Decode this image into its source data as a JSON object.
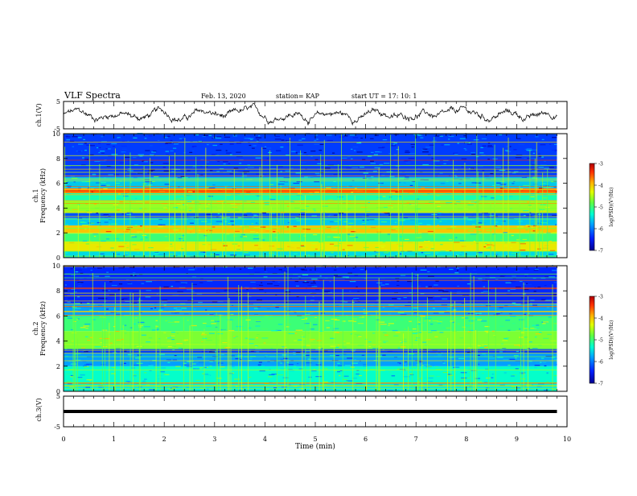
{
  "header": {
    "title": "VLF Spectra",
    "date": "Feb. 13, 2020",
    "station": "station= KAP",
    "start_time": "start  UT =   17: 10: 1"
  },
  "colors": {
    "spectrogram_base": "#1f3fc7",
    "line_trace": "#000000",
    "colorbar": [
      "#0000a0",
      "#0030ff",
      "#00c8ff",
      "#4cff6a",
      "#c8ff00",
      "#ffd000",
      "#ff5000",
      "#d00000"
    ]
  },
  "chart_data": [
    {
      "type": "line",
      "name": "ch1-waveform",
      "ylabel": "ch.1(V)",
      "ylim": [
        -5,
        5
      ],
      "yticks": [
        "5",
        "-5"
      ],
      "xlim": [
        0,
        10
      ],
      "x_end": 9.8,
      "y_description": "noisy trace around 0 V"
    },
    {
      "type": "heatmap",
      "name": "ch1-spectrogram",
      "ylabel": "ch.1\nFrequency (kHz)",
      "ylim": [
        0,
        10
      ],
      "yticks": [
        "0",
        "2",
        "4",
        "6",
        "8",
        "10"
      ],
      "xlim": [
        0,
        10
      ],
      "x_end": 9.8,
      "colorbar": {
        "label": "log(PSD)(V²/Hz)",
        "range": [
          -7,
          -3
        ],
        "ticks": [
          "-3",
          "-4",
          "-5",
          "-6",
          "-7"
        ]
      },
      "bands_khz": [
        {
          "from": 0.0,
          "to": 0.5,
          "level": -5.5
        },
        {
          "from": 0.5,
          "to": 1.3,
          "level": -4.2
        },
        {
          "from": 1.3,
          "to": 2.0,
          "level": -5.0
        },
        {
          "from": 2.0,
          "to": 2.6,
          "level": -4.0
        },
        {
          "from": 2.6,
          "to": 3.2,
          "level": -5.6
        },
        {
          "from": 3.2,
          "to": 3.6,
          "level": -6.2
        },
        {
          "from": 3.6,
          "to": 4.6,
          "level": -4.6
        },
        {
          "from": 4.6,
          "to": 5.2,
          "level": -5.2
        },
        {
          "from": 5.2,
          "to": 5.6,
          "level": -3.6
        },
        {
          "from": 5.6,
          "to": 6.5,
          "level": -5.6
        },
        {
          "from": 6.5,
          "to": 10.0,
          "level": -6.3
        }
      ]
    },
    {
      "type": "heatmap",
      "name": "ch2-spectrogram",
      "ylabel": "ch.2\nFrequency (kHz)",
      "ylim": [
        0,
        10
      ],
      "yticks": [
        "0",
        "2",
        "4",
        "6",
        "8",
        "10"
      ],
      "xlim": [
        0,
        10
      ],
      "x_end": 9.8,
      "colorbar": {
        "label": "log(PSD)(V²/Hz)",
        "range": [
          -7,
          -3
        ],
        "ticks": [
          "-3",
          "-4",
          "-5",
          "-6",
          "-7"
        ]
      },
      "bands_khz": [
        {
          "from": 0.0,
          "to": 0.6,
          "level": -5.4
        },
        {
          "from": 0.6,
          "to": 2.0,
          "level": -5.3
        },
        {
          "from": 2.0,
          "to": 3.0,
          "level": -5.8
        },
        {
          "from": 3.0,
          "to": 3.4,
          "level": -6.3
        },
        {
          "from": 3.4,
          "to": 4.8,
          "level": -4.7
        },
        {
          "from": 4.8,
          "to": 6.0,
          "level": -5.0
        },
        {
          "from": 6.0,
          "to": 7.0,
          "level": -5.8
        },
        {
          "from": 7.0,
          "to": 10.0,
          "level": -6.4
        }
      ]
    },
    {
      "type": "line",
      "name": "ch3-waveform",
      "ylabel": "ch.3(V)",
      "ylim": [
        -5,
        5
      ],
      "yticks": [
        "5",
        "-5"
      ],
      "xlim": [
        0,
        10
      ],
      "x_end": 9.8,
      "y_value": 0
    }
  ],
  "xaxis": {
    "label": "Time (min)",
    "ticks": [
      "0",
      "1",
      "2",
      "3",
      "4",
      "5",
      "6",
      "7",
      "8",
      "9",
      "10"
    ]
  }
}
